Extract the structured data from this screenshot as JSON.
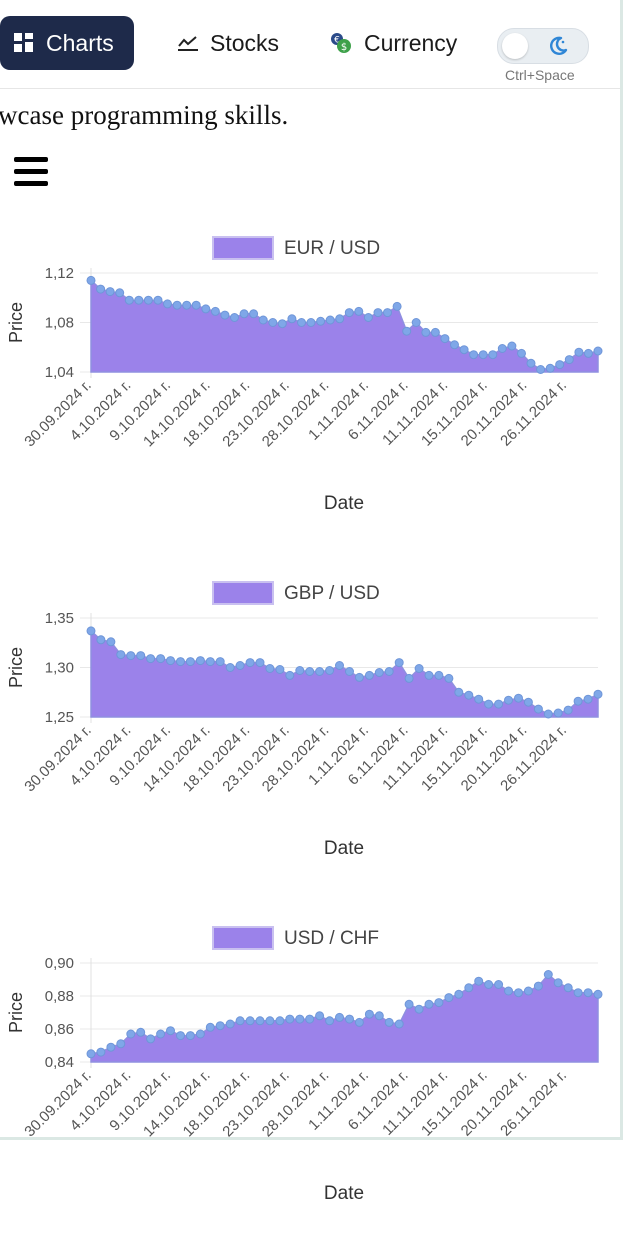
{
  "nav": {
    "charts_label": "Charts",
    "stocks_label": "Stocks",
    "currency_label": "Currency",
    "active": "Charts",
    "icons": {
      "charts": "grid-icon",
      "stocks": "line-chart-icon",
      "currency": "coins-icon",
      "theme": "moon-icon"
    },
    "theme_shortcut": "Ctrl+Space"
  },
  "intro_text": "wcase programming skills.",
  "colors": {
    "nav_active_bg": "#1e2a4a",
    "area_fill": "#9b82ea",
    "point_fill": "#7fa7e8",
    "line": "#8f8fe0"
  },
  "chart_data": [
    {
      "type": "area",
      "title": "",
      "legend": "EUR / USD",
      "xlabel": "Date",
      "ylabel": "Price",
      "ylim": [
        1.04,
        1.12
      ],
      "yticks": [
        "1,04",
        "1,08",
        "1,12"
      ],
      "xticks": [
        "30.09.2024 г.",
        "4.10.2024 г.",
        "9.10.2024 г.",
        "14.10.2024 г.",
        "18.10.2024 г.",
        "23.10.2024 г.",
        "28.10.2024 г.",
        "1.11.2024 г.",
        "6.11.2024 г.",
        "11.11.2024 г.",
        "15.11.2024 г.",
        "20.11.2024 г.",
        "26.11.2024 г."
      ],
      "series": [
        {
          "values": [
            1.114,
            1.107,
            1.105,
            1.104,
            1.098,
            1.098,
            1.098,
            1.098,
            1.095,
            1.094,
            1.094,
            1.094,
            1.091,
            1.089,
            1.086,
            1.084,
            1.087,
            1.087,
            1.082,
            1.08,
            1.079,
            1.083,
            1.08,
            1.08,
            1.081,
            1.082,
            1.083,
            1.088,
            1.089,
            1.084,
            1.088,
            1.088,
            1.093,
            1.073,
            1.08,
            1.072,
            1.072,
            1.067,
            1.062,
            1.058,
            1.054,
            1.054,
            1.054,
            1.059,
            1.061,
            1.055,
            1.047,
            1.042,
            1.043,
            1.046,
            1.05,
            1.056,
            1.055,
            1.057
          ]
        }
      ]
    },
    {
      "type": "area",
      "title": "",
      "legend": "GBP / USD",
      "xlabel": "Date",
      "ylabel": "Price",
      "ylim": [
        1.25,
        1.35
      ],
      "yticks": [
        "1,25",
        "1,30",
        "1,35"
      ],
      "xticks": [
        "30.09.2024 г.",
        "4.10.2024 г.",
        "9.10.2024 г.",
        "14.10.2024 г.",
        "18.10.2024 г.",
        "23.10.2024 г.",
        "28.10.2024 г.",
        "1.11.2024 г.",
        "6.11.2024 г.",
        "11.11.2024 г.",
        "15.11.2024 г.",
        "20.11.2024 г.",
        "26.11.2024 г."
      ],
      "series": [
        {
          "values": [
            1.337,
            1.328,
            1.326,
            1.313,
            1.312,
            1.312,
            1.309,
            1.309,
            1.307,
            1.306,
            1.306,
            1.307,
            1.306,
            1.306,
            1.3,
            1.302,
            1.305,
            1.305,
            1.299,
            1.298,
            1.292,
            1.297,
            1.296,
            1.296,
            1.297,
            1.302,
            1.296,
            1.29,
            1.292,
            1.295,
            1.296,
            1.305,
            1.289,
            1.299,
            1.292,
            1.292,
            1.289,
            1.275,
            1.272,
            1.268,
            1.263,
            1.263,
            1.267,
            1.269,
            1.265,
            1.258,
            1.253,
            1.254,
            1.257,
            1.266,
            1.268,
            1.273
          ]
        }
      ]
    },
    {
      "type": "area",
      "title": "",
      "legend": "USD / CHF",
      "xlabel": "Date",
      "ylabel": "Price",
      "ylim": [
        0.84,
        0.9
      ],
      "yticks": [
        "0,84",
        "0,86",
        "0,88",
        "0,90"
      ],
      "xticks": [
        "30.09.2024 г.",
        "4.10.2024 г.",
        "9.10.2024 г.",
        "14.10.2024 г.",
        "18.10.2024 г.",
        "23.10.2024 г.",
        "28.10.2024 г.",
        "1.11.2024 г.",
        "6.11.2024 г.",
        "11.11.2024 г.",
        "15.11.2024 г.",
        "20.11.2024 г.",
        "26.11.2024 г."
      ],
      "series": [
        {
          "values": [
            0.845,
            0.846,
            0.849,
            0.851,
            0.857,
            0.858,
            0.854,
            0.857,
            0.859,
            0.856,
            0.856,
            0.857,
            0.861,
            0.862,
            0.863,
            0.865,
            0.865,
            0.865,
            0.865,
            0.865,
            0.866,
            0.866,
            0.866,
            0.868,
            0.865,
            0.867,
            0.866,
            0.864,
            0.869,
            0.868,
            0.864,
            0.863,
            0.875,
            0.872,
            0.875,
            0.876,
            0.879,
            0.881,
            0.885,
            0.889,
            0.887,
            0.887,
            0.883,
            0.882,
            0.883,
            0.886,
            0.893,
            0.888,
            0.885,
            0.882,
            0.882,
            0.881
          ]
        }
      ]
    }
  ]
}
